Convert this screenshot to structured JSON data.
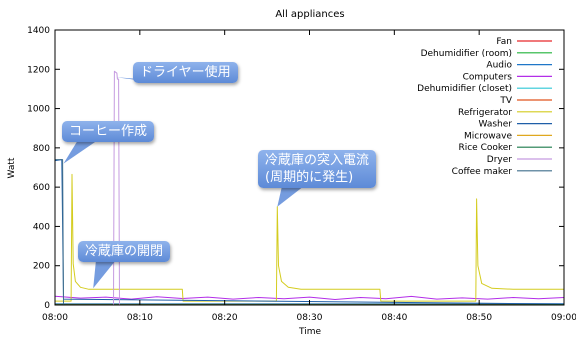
{
  "chart_data": {
    "type": "line",
    "title": "All appliances",
    "xlabel": "Time",
    "ylabel": "Watt",
    "x_ticks": [
      "08:00",
      "08:10",
      "08:20",
      "08:30",
      "08:40",
      "08:50",
      "09:00"
    ],
    "x_range_minutes": [
      0,
      60
    ],
    "ylim": [
      0,
      1400
    ],
    "y_ticks": [
      0,
      200,
      400,
      600,
      800,
      1000,
      1200,
      1400
    ],
    "legend_position": "top-right",
    "grid": false,
    "series": [
      {
        "name": "Fan",
        "color": "#e8282a",
        "points": [
          [
            0,
            0
          ],
          [
            60,
            0
          ]
        ]
      },
      {
        "name": "Dehumidifier (room)",
        "color": "#21b33a",
        "points": [
          [
            0,
            2
          ],
          [
            60,
            2
          ]
        ]
      },
      {
        "name": "Audio",
        "color": "#1f77c8",
        "points": [
          [
            0,
            6
          ],
          [
            60,
            6
          ]
        ]
      },
      {
        "name": "Computers",
        "color": "#b32ee8",
        "points": [
          [
            0,
            45
          ],
          [
            3,
            35
          ],
          [
            6,
            40
          ],
          [
            9,
            30
          ],
          [
            12,
            42
          ],
          [
            15,
            33
          ],
          [
            18,
            40
          ],
          [
            21,
            30
          ],
          [
            24,
            38
          ],
          [
            27,
            32
          ],
          [
            30,
            40
          ],
          [
            33,
            28
          ],
          [
            36,
            38
          ],
          [
            39,
            32
          ],
          [
            42,
            44
          ],
          [
            45,
            30
          ],
          [
            48,
            36
          ],
          [
            51,
            30
          ],
          [
            54,
            38
          ],
          [
            57,
            32
          ],
          [
            60,
            38
          ]
        ]
      },
      {
        "name": "Dehumidifier (closet)",
        "color": "#2ec7d6",
        "points": [
          [
            0,
            4
          ],
          [
            60,
            4
          ]
        ]
      },
      {
        "name": "TV",
        "color": "#e0541f",
        "points": [
          [
            0,
            3
          ],
          [
            60,
            3
          ]
        ]
      },
      {
        "name": "Refrigerator",
        "color": "#d4cc1f",
        "points": [
          [
            0,
            20
          ],
          [
            1.9,
            20
          ],
          [
            2.0,
            665
          ],
          [
            2.15,
            210
          ],
          [
            2.4,
            120
          ],
          [
            3,
            90
          ],
          [
            4,
            80
          ],
          [
            5,
            80
          ],
          [
            6,
            80
          ],
          [
            7,
            80
          ],
          [
            8,
            80
          ],
          [
            9,
            80
          ],
          [
            10,
            80
          ],
          [
            11,
            80
          ],
          [
            12,
            80
          ],
          [
            13,
            80
          ],
          [
            14,
            80
          ],
          [
            15.0,
            80
          ],
          [
            15.1,
            20
          ],
          [
            26.1,
            20
          ],
          [
            26.2,
            500
          ],
          [
            26.35,
            200
          ],
          [
            26.7,
            120
          ],
          [
            27.5,
            90
          ],
          [
            29,
            80
          ],
          [
            32,
            80
          ],
          [
            35,
            80
          ],
          [
            38.3,
            80
          ],
          [
            38.4,
            20
          ],
          [
            49.6,
            20
          ],
          [
            49.7,
            540
          ],
          [
            49.85,
            200
          ],
          [
            50.3,
            110
          ],
          [
            51.5,
            85
          ],
          [
            54,
            80
          ],
          [
            57,
            80
          ],
          [
            60,
            80
          ]
        ]
      },
      {
        "name": "Washer",
        "color": "#1f5fa8",
        "points": [
          [
            0,
            735
          ],
          [
            0.8,
            740
          ],
          [
            1.0,
            30
          ],
          [
            60,
            5
          ]
        ]
      },
      {
        "name": "Microwave",
        "color": "#e0a81f",
        "points": [
          [
            0,
            0
          ],
          [
            60,
            0
          ]
        ]
      },
      {
        "name": "Rice Cooker",
        "color": "#1a7a4a",
        "points": [
          [
            0,
            2
          ],
          [
            60,
            2
          ]
        ]
      },
      {
        "name": "Dryer",
        "color": "#c59be0",
        "points": [
          [
            0,
            0
          ],
          [
            6.9,
            0
          ],
          [
            7.0,
            1190
          ],
          [
            7.3,
            1180
          ],
          [
            7.35,
            1150
          ],
          [
            7.5,
            1150
          ],
          [
            7.6,
            0
          ],
          [
            60,
            0
          ]
        ]
      },
      {
        "name": "Coffee maker",
        "color": "#3f6e8c",
        "points": [
          [
            0,
            740
          ],
          [
            0.9,
            740
          ],
          [
            1.0,
            0
          ],
          [
            60,
            0
          ]
        ]
      }
    ],
    "annotations": [
      {
        "text": "ドライヤー使用",
        "x": 7.2,
        "y": 1160
      },
      {
        "text": "コーヒー作成",
        "x": 1.0,
        "y": 720
      },
      {
        "text": "冷蔵庫の突入電流\n(周期的に発生)",
        "x": 26.2,
        "y": 500
      },
      {
        "text": "冷蔵庫の開閉",
        "x": 4.5,
        "y": 85
      }
    ]
  }
}
